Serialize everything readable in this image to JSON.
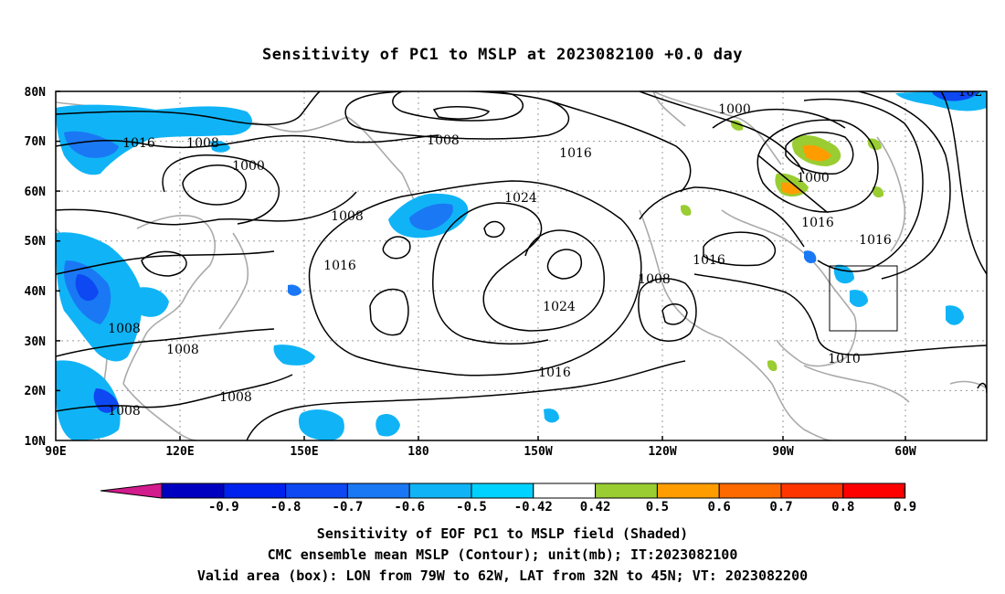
{
  "title": "Sensitivity of PC1 to MSLP at 2023082100 +0.0 day",
  "axes": {
    "y_ticks": [
      "80N",
      "70N",
      "60N",
      "50N",
      "40N",
      "30N",
      "20N",
      "10N"
    ],
    "x_ticks": [
      "90E",
      "120E",
      "150E",
      "180",
      "150W",
      "120W",
      "90W",
      "60W"
    ]
  },
  "contour_labels": [
    "1016",
    "1008",
    "1000",
    "1008",
    "1008",
    "1016",
    "1024",
    "1016",
    "1024",
    "1016",
    "1008",
    "1008",
    "1008",
    "1008",
    "1000",
    "1000",
    "1016",
    "1008",
    "1016",
    "1016",
    "1010",
    "102"
  ],
  "colorbar": {
    "labels": [
      "-0.9",
      "-0.8",
      "-0.7",
      "-0.6",
      "-0.5",
      "-0.42",
      "0.42",
      "0.5",
      "0.6",
      "0.7",
      "0.8",
      "0.9"
    ],
    "colors": [
      "#0000c0",
      "#0022ee",
      "#0d48f2",
      "#1a78f5",
      "#10b4f6",
      "#00d2ff",
      "#ffffff",
      "#9acd32",
      "#ff9d00",
      "#ff6a00",
      "#ff3500",
      "#ff0000"
    ],
    "low_end": "#d21b8c",
    "high_end": "#ff9fd0"
  },
  "captions": [
    "Sensitivity of EOF PC1 to MSLP field (Shaded)",
    "CMC ensemble mean MSLP (Contour); unit(mb); IT:2023082100",
    "Valid area (box): LON from 79W to 62W, LAT from 32N to 45N; VT: 2023082200"
  ]
}
